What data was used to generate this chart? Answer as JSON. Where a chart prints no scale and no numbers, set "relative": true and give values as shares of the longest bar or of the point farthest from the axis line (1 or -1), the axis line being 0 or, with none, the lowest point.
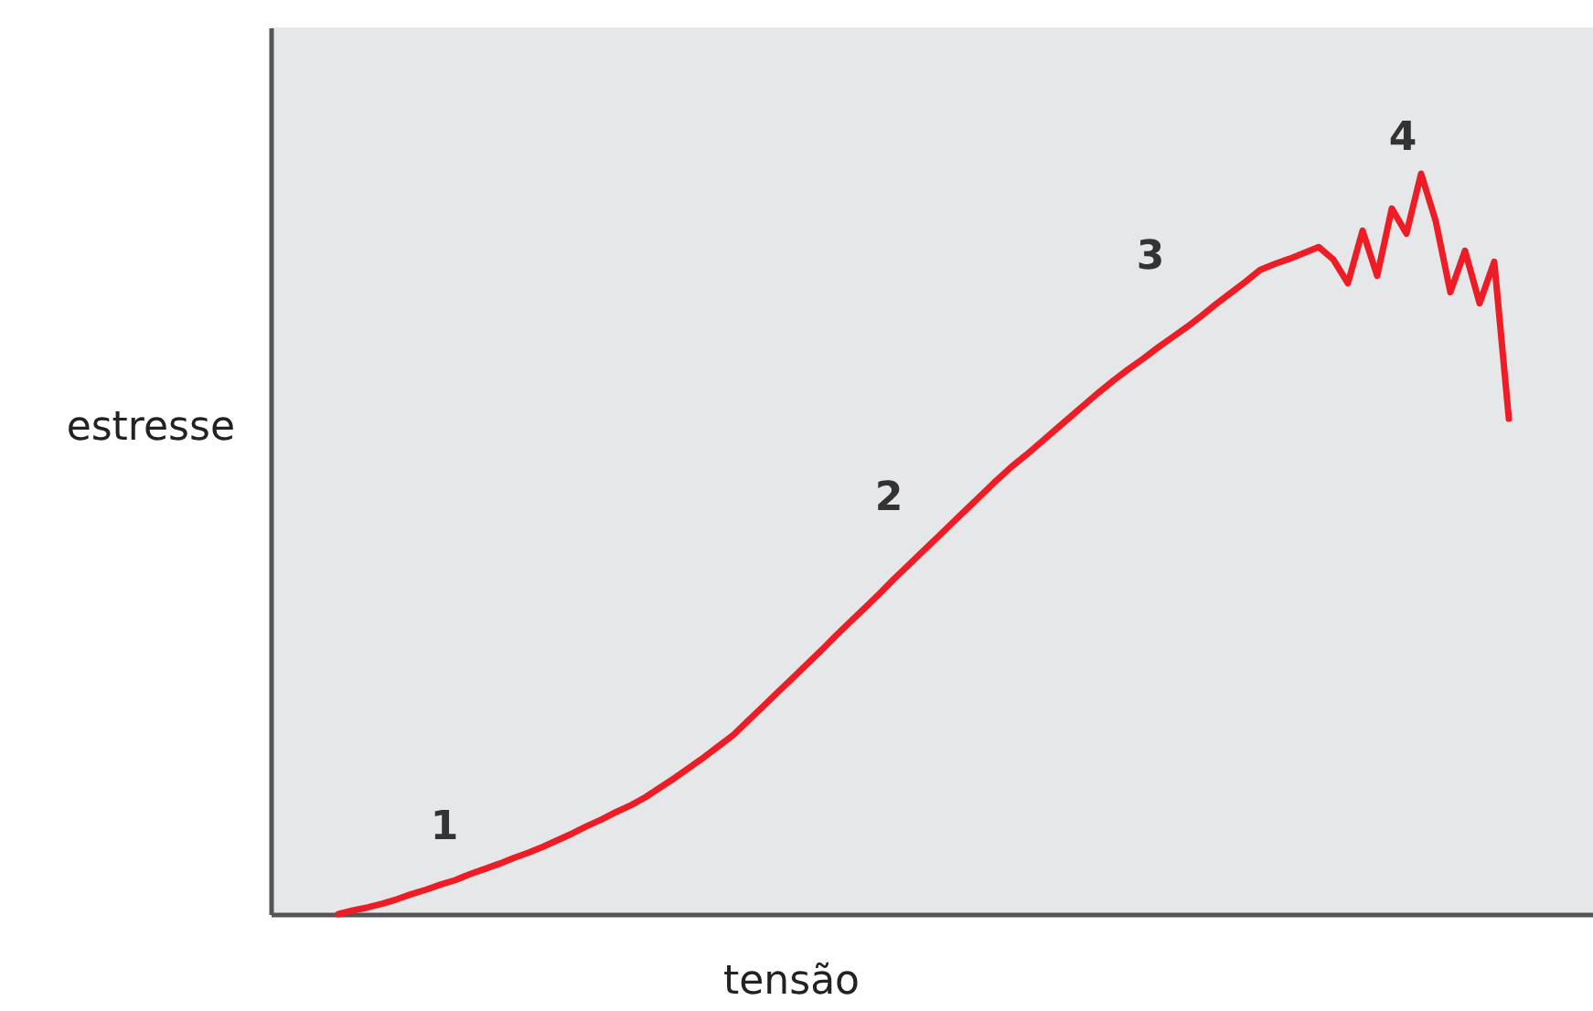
{
  "chart_data": {
    "type": "line",
    "relative": true,
    "xlabel": "tensão",
    "ylabel": "estresse",
    "annotations": [
      "1",
      "2",
      "3",
      "4"
    ],
    "grid": false,
    "marker": "none",
    "line_style": "solid",
    "categories": [
      null,
      null,
      null,
      null,
      null,
      null,
      null,
      null,
      null,
      null,
      null,
      null,
      null,
      null,
      null,
      null,
      null,
      null,
      null,
      null,
      null,
      null,
      null,
      null,
      null,
      null,
      null,
      null,
      null,
      null,
      null,
      null,
      null,
      null,
      null,
      null,
      null,
      null,
      null,
      null,
      null,
      null,
      null,
      null,
      null,
      null,
      null,
      null,
      null,
      null,
      null,
      null,
      null,
      null,
      null,
      null,
      null,
      null,
      null,
      null,
      null,
      null,
      null,
      null,
      null,
      null,
      null,
      null,
      null,
      null,
      null,
      null,
      null,
      null,
      null,
      null,
      null,
      null,
      null,
      null,
      null
    ],
    "series": [
      {
        "color": "#ee1c24",
        "values": [
          0,
          0.005,
          0.009,
          0.014,
          0.02,
          0.027,
          0.033,
          0.04,
          0.046,
          0.054,
          0.061,
          0.068,
          0.076,
          0.083,
          0.091,
          0.1,
          0.109,
          0.119,
          0.128,
          0.138,
          0.147,
          0.158,
          0.171,
          0.184,
          0.198,
          0.212,
          0.227,
          0.242,
          0.261,
          0.28,
          0.299,
          0.318,
          0.337,
          0.356,
          0.376,
          0.395,
          0.414,
          0.433,
          0.453,
          0.472,
          0.491,
          0.51,
          0.529,
          0.548,
          0.567,
          0.586,
          0.604,
          0.62,
          0.637,
          0.654,
          0.671,
          0.688,
          0.705,
          0.721,
          0.736,
          0.75,
          0.765,
          0.779,
          0.793,
          0.808,
          0.824,
          0.839,
          0.854,
          0.87,
          0.878,
          0.885,
          0.893,
          0.901,
          0.884,
          0.852,
          0.923,
          0.862,
          0.953,
          0.919,
          1,
          0.936,
          0.84,
          0.896,
          0.825,
          0.881,
          0.669
        ]
      }
    ]
  }
}
